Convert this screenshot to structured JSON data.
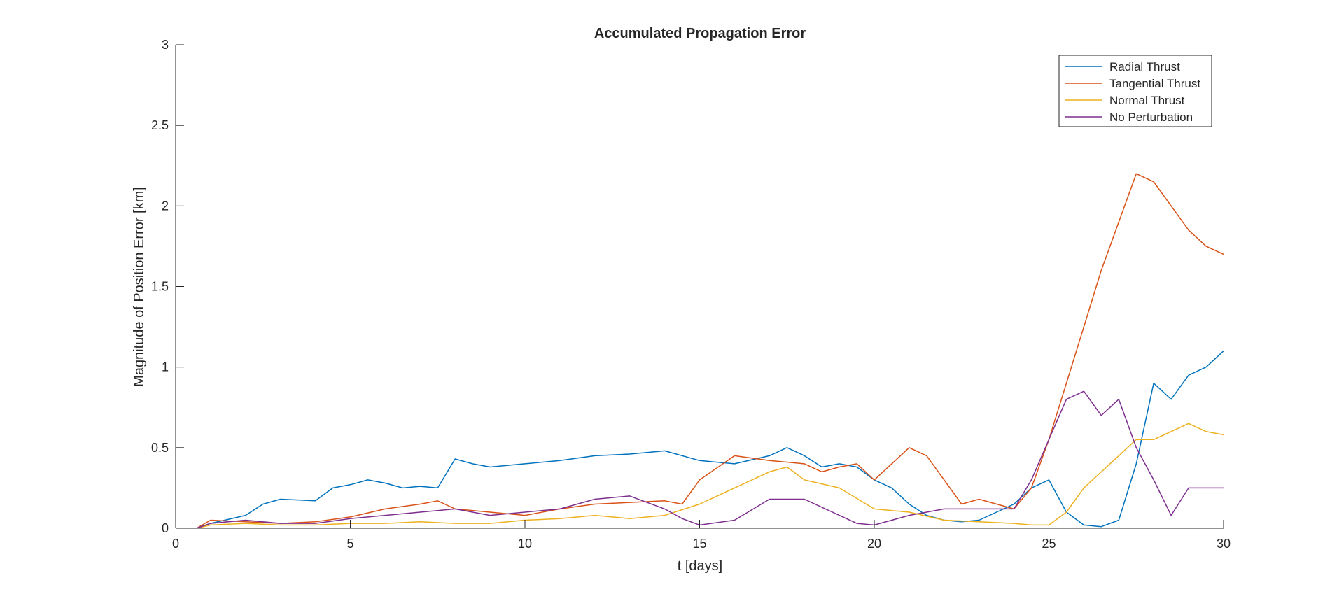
{
  "chart_data": {
    "type": "line",
    "title": "Accumulated Propagation Error",
    "xlabel": "t [days]",
    "ylabel": "Magnitude of Position Error [km]",
    "xlim": [
      0,
      30
    ],
    "ylim": [
      0,
      3
    ],
    "x_ticks": [
      "0",
      "5",
      "10",
      "15",
      "20",
      "25",
      "30"
    ],
    "y_ticks": [
      "0",
      "0.5",
      "1",
      "1.5",
      "2",
      "2.5",
      "3"
    ],
    "grid": false,
    "legend_position": "top-right",
    "series": [
      {
        "name": "Radial Thrust",
        "color": "#0072BD",
        "x": [
          0.6,
          1,
          2,
          2.5,
          3,
          4,
          4.5,
          5,
          5.5,
          6,
          6.5,
          7,
          7.5,
          8,
          8.5,
          9,
          10,
          11,
          12,
          13,
          14,
          15,
          16,
          17,
          17.5,
          18,
          18.5,
          19,
          19.5,
          20,
          20.5,
          21,
          21.5,
          22,
          22.5,
          23,
          23.5,
          24,
          24.5,
          25,
          25.5,
          26,
          26.5,
          27,
          27.5,
          28,
          28.5,
          29,
          29.5,
          30
        ],
        "y": [
          0.0,
          0.03,
          0.08,
          0.15,
          0.18,
          0.17,
          0.25,
          0.27,
          0.3,
          0.28,
          0.25,
          0.26,
          0.25,
          0.43,
          0.4,
          0.38,
          0.4,
          0.42,
          0.45,
          0.46,
          0.48,
          0.42,
          0.4,
          0.45,
          0.5,
          0.45,
          0.38,
          0.4,
          0.38,
          0.3,
          0.25,
          0.15,
          0.08,
          0.05,
          0.04,
          0.05,
          0.1,
          0.15,
          0.25,
          0.3,
          0.1,
          0.02,
          0.01,
          0.05,
          0.4,
          0.9,
          0.8,
          0.95,
          1.0,
          1.1
        ]
      },
      {
        "name": "Tangential Thrust",
        "color": "#D95319",
        "x": [
          0.6,
          1,
          2,
          3,
          4,
          5,
          6,
          7,
          7.5,
          8,
          9,
          10,
          11,
          12,
          13,
          14,
          14.5,
          15,
          16,
          17,
          18,
          18.5,
          19,
          19.5,
          20,
          20.5,
          21,
          21.5,
          22,
          22.5,
          23,
          24,
          24.5,
          25,
          25.5,
          26,
          26.5,
          27,
          27.5,
          28,
          28.5,
          29,
          29.5,
          30
        ],
        "y": [
          0.0,
          0.05,
          0.04,
          0.03,
          0.04,
          0.07,
          0.12,
          0.15,
          0.17,
          0.12,
          0.1,
          0.08,
          0.12,
          0.15,
          0.16,
          0.17,
          0.15,
          0.3,
          0.45,
          0.42,
          0.4,
          0.35,
          0.38,
          0.4,
          0.3,
          0.4,
          0.5,
          0.45,
          0.3,
          0.15,
          0.18,
          0.12,
          0.25,
          0.55,
          0.9,
          1.25,
          1.6,
          1.9,
          2.2,
          2.15,
          2.0,
          1.85,
          1.75,
          1.7
        ]
      },
      {
        "name": "Normal Thrust",
        "color": "#EDB120",
        "x": [
          0.6,
          1,
          2,
          3,
          4,
          5,
          6,
          7,
          8,
          9,
          10,
          11,
          12,
          13,
          14,
          15,
          16,
          17,
          17.5,
          18,
          19,
          20,
          21,
          22,
          23,
          24,
          24.5,
          25,
          25.5,
          26,
          26.5,
          27,
          27.5,
          28,
          28.5,
          29,
          29.5,
          30
        ],
        "y": [
          0.0,
          0.02,
          0.03,
          0.02,
          0.02,
          0.03,
          0.03,
          0.04,
          0.03,
          0.03,
          0.05,
          0.06,
          0.08,
          0.06,
          0.08,
          0.15,
          0.25,
          0.35,
          0.38,
          0.3,
          0.25,
          0.12,
          0.1,
          0.05,
          0.04,
          0.03,
          0.02,
          0.02,
          0.1,
          0.25,
          0.35,
          0.45,
          0.55,
          0.55,
          0.6,
          0.65,
          0.6,
          0.58
        ]
      },
      {
        "name": "No Perturbation",
        "color": "#7E2F8E",
        "x": [
          0.6,
          1,
          2,
          3,
          4,
          5,
          6,
          7,
          8,
          9,
          10,
          11,
          12,
          13,
          14,
          14.5,
          15,
          16,
          17,
          18,
          19,
          19.5,
          20,
          20.5,
          21,
          22,
          23,
          24,
          24.5,
          25,
          25.5,
          26,
          26.5,
          27,
          27.5,
          28,
          28.5,
          29,
          29.5,
          30
        ],
        "y": [
          0.0,
          0.03,
          0.05,
          0.03,
          0.03,
          0.06,
          0.08,
          0.1,
          0.12,
          0.08,
          0.1,
          0.12,
          0.18,
          0.2,
          0.12,
          0.06,
          0.02,
          0.05,
          0.18,
          0.18,
          0.08,
          0.03,
          0.02,
          0.05,
          0.08,
          0.12,
          0.12,
          0.12,
          0.3,
          0.55,
          0.8,
          0.85,
          0.7,
          0.8,
          0.5,
          0.3,
          0.08,
          0.25,
          0.25,
          0.25
        ]
      }
    ]
  }
}
